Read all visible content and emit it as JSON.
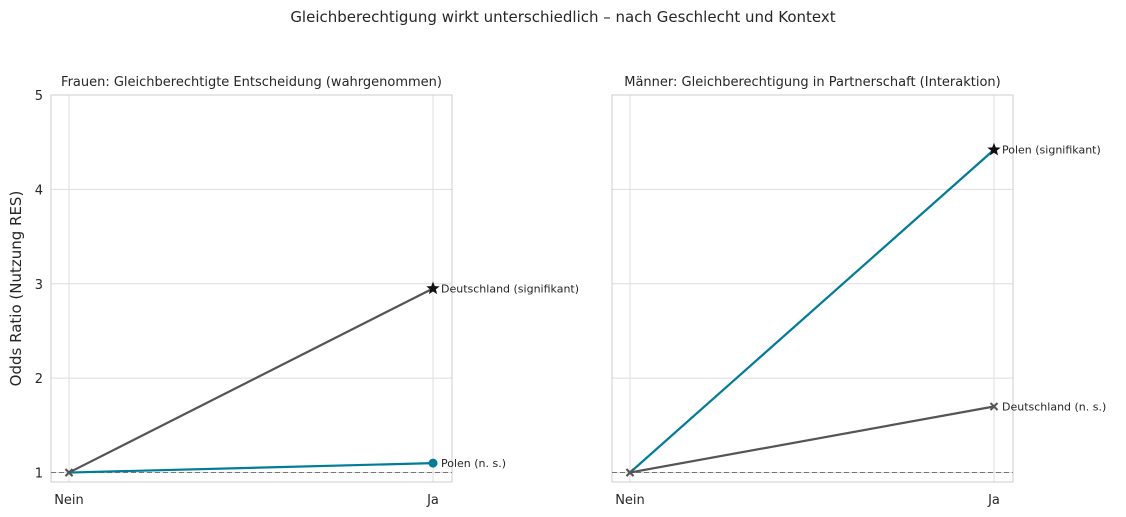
{
  "figure": {
    "title": "Gleichberechtigung wirkt unterschiedlich – nach Geschlecht und Kontext"
  },
  "chart_data": [
    {
      "type": "line",
      "title": "Frauen: Gleichberechtigte Entscheidung (wahrgenommen)",
      "xlabel": "",
      "ylabel": "Odds Ratio (Nutzung RES)",
      "categories": [
        "Nein",
        "Ja"
      ],
      "ylim": [
        0.9,
        5
      ],
      "yticks": [
        1,
        2,
        3,
        4,
        5
      ],
      "grid": true,
      "reference_line": 1,
      "series": [
        {
          "values": [
            1,
            2.95
          ],
          "color": "#555555",
          "end_marker": "star",
          "label": "Deutschland (signifikant)"
        },
        {
          "values": [
            1,
            1.1
          ],
          "color": "#007c99",
          "end_marker": "circle",
          "label": "Polen (n. s.)"
        }
      ]
    },
    {
      "type": "line",
      "title": "Männer: Gleichberechtigung in Partnerschaft (Interaktion)",
      "xlabel": "",
      "ylabel": "",
      "categories": [
        "Nein",
        "Ja"
      ],
      "ylim": [
        0.9,
        5
      ],
      "yticks": [
        1,
        2,
        3,
        4,
        5
      ],
      "show_ytick_labels": false,
      "grid": true,
      "reference_line": 1,
      "series": [
        {
          "values": [
            1,
            4.42
          ],
          "color": "#007c99",
          "end_marker": "star",
          "label": "Polen (signifikant)"
        },
        {
          "values": [
            1,
            1.7
          ],
          "color": "#555555",
          "end_marker": "x",
          "label": "Deutschland (n. s.)"
        }
      ]
    }
  ]
}
